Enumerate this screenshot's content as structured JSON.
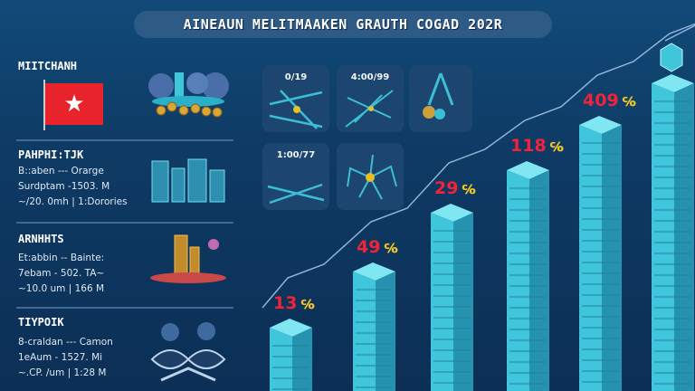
{
  "title": "AINEAUN MELITMAAKEN GRAUTH COGAD 202R",
  "sections": [
    {
      "heading": "MIITCHANH",
      "lines": []
    },
    {
      "heading": "PAHPHI:TJK",
      "lines": [
        "B::aben --- Orarge",
        "Surdptam -1503. M",
        "~/20. 0mh | 1:Dorories"
      ]
    },
    {
      "heading": "ARNHHTS",
      "lines": [
        "Et:abbin -- Bainte:",
        "7ebam - 502. TA~",
        "~10.0 um | 166 M"
      ]
    },
    {
      "heading": "TIYPOIK",
      "lines": [
        "8-craldan --- Camon",
        "1eAum - 1527. Mi",
        "~.CP. /um | 1:28 M"
      ]
    }
  ],
  "cards": [
    {
      "label": "0/19",
      "icon": "network-icon"
    },
    {
      "label": "4:00/99",
      "icon": "network-icon"
    },
    {
      "label": "",
      "icon": "compass-coins-icon"
    },
    {
      "label": "1:00/77",
      "icon": "network-icon"
    },
    {
      "label": "",
      "icon": "spider-network-icon"
    }
  ],
  "colors": {
    "bar": "#3fc6dc",
    "label": "#f0233a",
    "symbol": "#f3c623",
    "flag": "#e8232b"
  },
  "chart_data": {
    "type": "bar",
    "title": "AINEAUN MELITMAAKEN GRAUTH COGAD 202R",
    "categories": [],
    "values": [
      13,
      49,
      29,
      118,
      409,
      null
    ],
    "labels": [
      "13",
      "49",
      "29",
      "118",
      "409",
      ""
    ],
    "style": "isometric 3D skyscraper bars with rising trend line",
    "grid": false
  }
}
